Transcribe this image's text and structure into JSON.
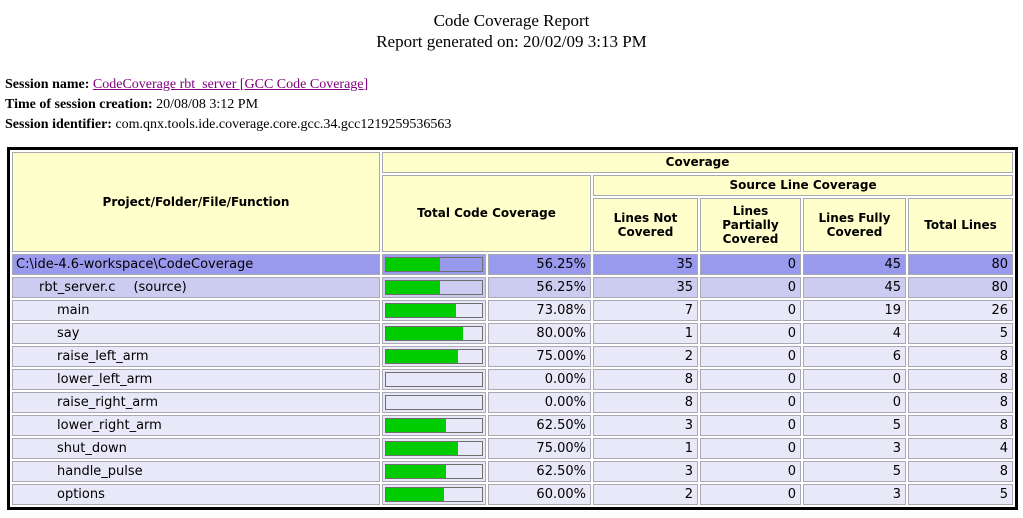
{
  "page": {
    "title": "Code Coverage Report",
    "subtitle": "Report generated on: 20/02/09 3:13 PM"
  },
  "session": {
    "name_label": "Session name:",
    "name_link": "CodeCoverage rbt_server [GCC Code Coverage]",
    "created_label": "Time of session creation:",
    "created_value": "20/08/08 3:12 PM",
    "identifier_label": "Session identifier:",
    "identifier_value": "com.qnx.tools.ide.coverage.core.gcc.34.gcc1219259536563"
  },
  "table": {
    "headers": {
      "project": "Project/Folder/File/Function",
      "coverage": "Coverage",
      "total_code_coverage": "Total Code Coverage",
      "source_line_coverage": "Source Line Coverage",
      "lines_not_covered": "Lines Not Covered",
      "lines_partially_covered": "Lines Partially Covered",
      "lines_fully_covered": "Lines Fully Covered",
      "total_lines": "Total Lines"
    },
    "colors": {
      "header_bg": "#ffffcc",
      "row_project_bg": "#9999ee",
      "row_file_bg": "#ccccf0",
      "row_function_bg": "#e8e8f8",
      "bar_fill": "#00cc00"
    },
    "rows": [
      {
        "name": "C:\\ide-4.6-workspace\\CodeCoverage",
        "suffix": "",
        "level": "project",
        "percent": 56.25,
        "percent_label": "56.25%",
        "not_covered": 35,
        "partially_covered": 0,
        "fully_covered": 45,
        "total_lines": 80
      },
      {
        "name": "rbt_server.c",
        "suffix": "(source)",
        "level": "file",
        "percent": 56.25,
        "percent_label": "56.25%",
        "not_covered": 35,
        "partially_covered": 0,
        "fully_covered": 45,
        "total_lines": 80
      },
      {
        "name": "main",
        "suffix": "",
        "level": "function",
        "percent": 73.08,
        "percent_label": "73.08%",
        "not_covered": 7,
        "partially_covered": 0,
        "fully_covered": 19,
        "total_lines": 26
      },
      {
        "name": "say",
        "suffix": "",
        "level": "function",
        "percent": 80.0,
        "percent_label": "80.00%",
        "not_covered": 1,
        "partially_covered": 0,
        "fully_covered": 4,
        "total_lines": 5
      },
      {
        "name": "raise_left_arm",
        "suffix": "",
        "level": "function",
        "percent": 75.0,
        "percent_label": "75.00%",
        "not_covered": 2,
        "partially_covered": 0,
        "fully_covered": 6,
        "total_lines": 8
      },
      {
        "name": "lower_left_arm",
        "suffix": "",
        "level": "function",
        "percent": 0.0,
        "percent_label": "0.00%",
        "not_covered": 8,
        "partially_covered": 0,
        "fully_covered": 0,
        "total_lines": 8
      },
      {
        "name": "raise_right_arm",
        "suffix": "",
        "level": "function",
        "percent": 0.0,
        "percent_label": "0.00%",
        "not_covered": 8,
        "partially_covered": 0,
        "fully_covered": 0,
        "total_lines": 8
      },
      {
        "name": "lower_right_arm",
        "suffix": "",
        "level": "function",
        "percent": 62.5,
        "percent_label": "62.50%",
        "not_covered": 3,
        "partially_covered": 0,
        "fully_covered": 5,
        "total_lines": 8
      },
      {
        "name": "shut_down",
        "suffix": "",
        "level": "function",
        "percent": 75.0,
        "percent_label": "75.00%",
        "not_covered": 1,
        "partially_covered": 0,
        "fully_covered": 3,
        "total_lines": 4
      },
      {
        "name": "handle_pulse",
        "suffix": "",
        "level": "function",
        "percent": 62.5,
        "percent_label": "62.50%",
        "not_covered": 3,
        "partially_covered": 0,
        "fully_covered": 5,
        "total_lines": 8
      },
      {
        "name": "options",
        "suffix": "",
        "level": "function",
        "percent": 60.0,
        "percent_label": "60.00%",
        "not_covered": 2,
        "partially_covered": 0,
        "fully_covered": 3,
        "total_lines": 5
      }
    ]
  }
}
